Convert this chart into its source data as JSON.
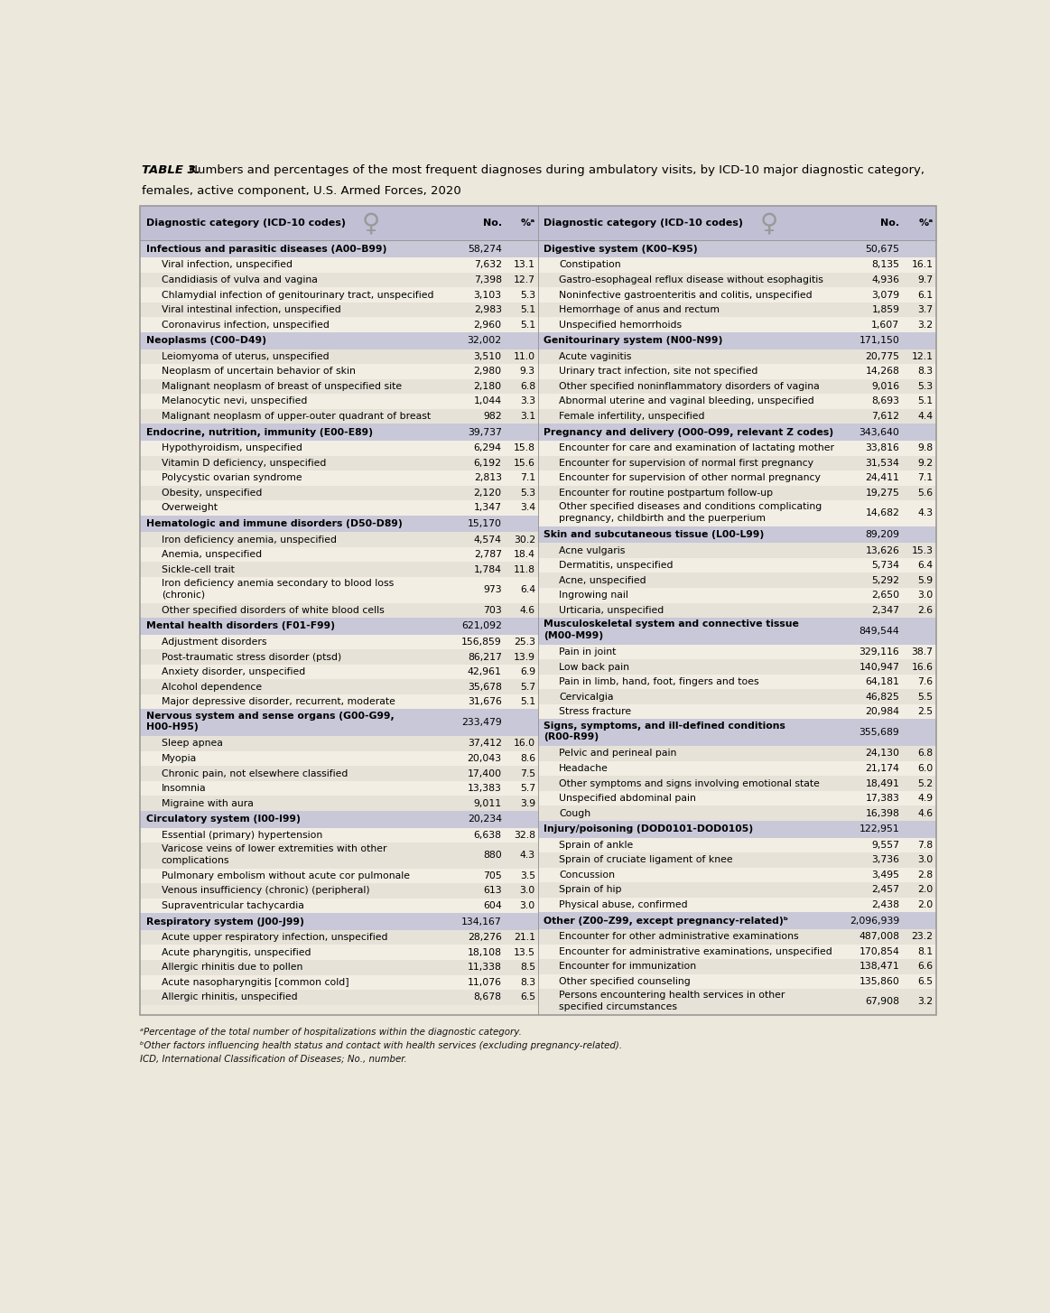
{
  "title_bold": "TABLE 3.",
  "title_normal": " Numbers and percentages of the most frequent diagnoses during ambulatory visits, by ICD-10 major diagnostic category,",
  "title_line2": "females, active component, U.S. Armed Forces, 2020",
  "bg_color": "#ede8dc",
  "header_bg": "#c0bfd4",
  "cat_bg": "#c8c8d8",
  "item_bg1": "#f2eee4",
  "item_bg2": "#e6e2d8",
  "border_color": "#999999",
  "text_color": "#000000",
  "symbol_color": "#999999",
  "footnotes": [
    "ᵃPercentage of the total number of hospitalizations within the diagnostic category.",
    "ᵇOther factors influencing health status and contact with health services (excluding pregnancy-related).",
    "ICD, International Classification of Diseases; No., number."
  ],
  "left_col": [
    {
      "type": "header",
      "text": "Diagnostic category (ICD-10 codes)",
      "no": "No.",
      "pct": "%ᵃ"
    },
    {
      "type": "cat",
      "text": "Infectious and parasitic diseases (A00–B99)",
      "no": "58,274",
      "pct": ""
    },
    {
      "type": "item",
      "text": "Viral infection, unspecified",
      "no": "7,632",
      "pct": "13.1"
    },
    {
      "type": "item",
      "text": "Candidiasis of vulva and vagina",
      "no": "7,398",
      "pct": "12.7"
    },
    {
      "type": "item",
      "text": "Chlamydial infection of genitourinary tract, unspecified",
      "no": "3,103",
      "pct": "5.3"
    },
    {
      "type": "item",
      "text": "Viral intestinal infection, unspecified",
      "no": "2,983",
      "pct": "5.1"
    },
    {
      "type": "item",
      "text": "Coronavirus infection, unspecified",
      "no": "2,960",
      "pct": "5.1"
    },
    {
      "type": "cat",
      "text": "Neoplasms (C00–D49)",
      "no": "32,002",
      "pct": ""
    },
    {
      "type": "item",
      "text": "Leiomyoma of uterus, unspecified",
      "no": "3,510",
      "pct": "11.0"
    },
    {
      "type": "item",
      "text": "Neoplasm of uncertain behavior of skin",
      "no": "2,980",
      "pct": "9.3"
    },
    {
      "type": "item",
      "text": "Malignant neoplasm of breast of unspecified site",
      "no": "2,180",
      "pct": "6.8"
    },
    {
      "type": "item",
      "text": "Melanocytic nevi, unspecified",
      "no": "1,044",
      "pct": "3.3"
    },
    {
      "type": "item",
      "text": "Malignant neoplasm of upper-outer quadrant of breast",
      "no": "982",
      "pct": "3.1"
    },
    {
      "type": "cat",
      "text": "Endocrine, nutrition, immunity (E00-E89)",
      "no": "39,737",
      "pct": ""
    },
    {
      "type": "item",
      "text": "Hypothyroidism, unspecified",
      "no": "6,294",
      "pct": "15.8"
    },
    {
      "type": "item",
      "text": "Vitamin D deficiency, unspecified",
      "no": "6,192",
      "pct": "15.6"
    },
    {
      "type": "item",
      "text": "Polycystic ovarian syndrome",
      "no": "2,813",
      "pct": "7.1"
    },
    {
      "type": "item",
      "text": "Obesity, unspecified",
      "no": "2,120",
      "pct": "5.3"
    },
    {
      "type": "item",
      "text": "Overweight",
      "no": "1,347",
      "pct": "3.4"
    },
    {
      "type": "cat",
      "text": "Hematologic and immune disorders (D50-D89)",
      "no": "15,170",
      "pct": ""
    },
    {
      "type": "item",
      "text": "Iron deficiency anemia, unspecified",
      "no": "4,574",
      "pct": "30.2"
    },
    {
      "type": "item",
      "text": "Anemia, unspecified",
      "no": "2,787",
      "pct": "18.4"
    },
    {
      "type": "item",
      "text": "Sickle-cell trait",
      "no": "1,784",
      "pct": "11.8"
    },
    {
      "type": "item2",
      "text": "Iron deficiency anemia secondary to blood loss\n(chronic)",
      "no": "973",
      "pct": "6.4"
    },
    {
      "type": "item",
      "text": "Other specified disorders of white blood cells",
      "no": "703",
      "pct": "4.6"
    },
    {
      "type": "cat",
      "text": "Mental health disorders (F01-F99)",
      "no": "621,092",
      "pct": ""
    },
    {
      "type": "item",
      "text": "Adjustment disorders",
      "no": "156,859",
      "pct": "25.3"
    },
    {
      "type": "item",
      "text": "Post-traumatic stress disorder (ptsd)",
      "no": "86,217",
      "pct": "13.9"
    },
    {
      "type": "item",
      "text": "Anxiety disorder, unspecified",
      "no": "42,961",
      "pct": "6.9"
    },
    {
      "type": "item",
      "text": "Alcohol dependence",
      "no": "35,678",
      "pct": "5.7"
    },
    {
      "type": "item",
      "text": "Major depressive disorder, recurrent, moderate",
      "no": "31,676",
      "pct": "5.1"
    },
    {
      "type": "cat2",
      "text": "Nervous system and sense organs (G00-G99,\nH00-H95)",
      "no": "233,479",
      "pct": ""
    },
    {
      "type": "item",
      "text": "Sleep apnea",
      "no": "37,412",
      "pct": "16.0"
    },
    {
      "type": "item",
      "text": "Myopia",
      "no": "20,043",
      "pct": "8.6"
    },
    {
      "type": "item",
      "text": "Chronic pain, not elsewhere classified",
      "no": "17,400",
      "pct": "7.5"
    },
    {
      "type": "item",
      "text": "Insomnia",
      "no": "13,383",
      "pct": "5.7"
    },
    {
      "type": "item",
      "text": "Migraine with aura",
      "no": "9,011",
      "pct": "3.9"
    },
    {
      "type": "cat",
      "text": "Circulatory system (I00-I99)",
      "no": "20,234",
      "pct": ""
    },
    {
      "type": "item",
      "text": "Essential (primary) hypertension",
      "no": "6,638",
      "pct": "32.8"
    },
    {
      "type": "item2",
      "text": "Varicose veins of lower extremities with other\ncomplications",
      "no": "880",
      "pct": "4.3"
    },
    {
      "type": "item",
      "text": "Pulmonary embolism without acute cor pulmonale",
      "no": "705",
      "pct": "3.5"
    },
    {
      "type": "item",
      "text": "Venous insufficiency (chronic) (peripheral)",
      "no": "613",
      "pct": "3.0"
    },
    {
      "type": "item",
      "text": "Supraventricular tachycardia",
      "no": "604",
      "pct": "3.0"
    },
    {
      "type": "cat",
      "text": "Respiratory system (J00-J99)",
      "no": "134,167",
      "pct": ""
    },
    {
      "type": "item",
      "text": "Acute upper respiratory infection, unspecified",
      "no": "28,276",
      "pct": "21.1"
    },
    {
      "type": "item",
      "text": "Acute pharyngitis, unspecified",
      "no": "18,108",
      "pct": "13.5"
    },
    {
      "type": "item",
      "text": "Allergic rhinitis due to pollen",
      "no": "11,338",
      "pct": "8.5"
    },
    {
      "type": "item",
      "text": "Acute nasopharyngitis [common cold]",
      "no": "11,076",
      "pct": "8.3"
    },
    {
      "type": "item",
      "text": "Allergic rhinitis, unspecified",
      "no": "8,678",
      "pct": "6.5"
    }
  ],
  "right_col": [
    {
      "type": "header",
      "text": "Diagnostic category (ICD-10 codes)",
      "no": "No.",
      "pct": "%ᵃ"
    },
    {
      "type": "cat",
      "text": "Digestive system (K00–K95)",
      "no": "50,675",
      "pct": ""
    },
    {
      "type": "item",
      "text": "Constipation",
      "no": "8,135",
      "pct": "16.1"
    },
    {
      "type": "item",
      "text": "Gastro-esophageal reflux disease without esophagitis",
      "no": "4,936",
      "pct": "9.7"
    },
    {
      "type": "item",
      "text": "Noninfective gastroenteritis and colitis, unspecified",
      "no": "3,079",
      "pct": "6.1"
    },
    {
      "type": "item",
      "text": "Hemorrhage of anus and rectum",
      "no": "1,859",
      "pct": "3.7"
    },
    {
      "type": "item",
      "text": "Unspecified hemorrhoids",
      "no": "1,607",
      "pct": "3.2"
    },
    {
      "type": "cat",
      "text": "Genitourinary system (N00-N99)",
      "no": "171,150",
      "pct": ""
    },
    {
      "type": "item",
      "text": "Acute vaginitis",
      "no": "20,775",
      "pct": "12.1"
    },
    {
      "type": "item",
      "text": "Urinary tract infection, site not specified",
      "no": "14,268",
      "pct": "8.3"
    },
    {
      "type": "item",
      "text": "Other specified noninflammatory disorders of vagina",
      "no": "9,016",
      "pct": "5.3"
    },
    {
      "type": "item",
      "text": "Abnormal uterine and vaginal bleeding, unspecified",
      "no": "8,693",
      "pct": "5.1"
    },
    {
      "type": "item",
      "text": "Female infertility, unspecified",
      "no": "7,612",
      "pct": "4.4"
    },
    {
      "type": "cat",
      "text": "Pregnancy and delivery (O00-O99, relevant Z codes)",
      "no": "343,640",
      "pct": ""
    },
    {
      "type": "item",
      "text": "Encounter for care and examination of lactating mother",
      "no": "33,816",
      "pct": "9.8"
    },
    {
      "type": "item",
      "text": "Encounter for supervision of normal first pregnancy",
      "no": "31,534",
      "pct": "9.2"
    },
    {
      "type": "item",
      "text": "Encounter for supervision of other normal pregnancy",
      "no": "24,411",
      "pct": "7.1"
    },
    {
      "type": "item",
      "text": "Encounter for routine postpartum follow-up",
      "no": "19,275",
      "pct": "5.6"
    },
    {
      "type": "item2",
      "text": "Other specified diseases and conditions complicating\npregnancy, childbirth and the puerperium",
      "no": "14,682",
      "pct": "4.3"
    },
    {
      "type": "cat",
      "text": "Skin and subcutaneous tissue (L00-L99)",
      "no": "89,209",
      "pct": ""
    },
    {
      "type": "item",
      "text": "Acne vulgaris",
      "no": "13,626",
      "pct": "15.3"
    },
    {
      "type": "item",
      "text": "Dermatitis, unspecified",
      "no": "5,734",
      "pct": "6.4"
    },
    {
      "type": "item",
      "text": "Acne, unspecified",
      "no": "5,292",
      "pct": "5.9"
    },
    {
      "type": "item",
      "text": "Ingrowing nail",
      "no": "2,650",
      "pct": "3.0"
    },
    {
      "type": "item",
      "text": "Urticaria, unspecified",
      "no": "2,347",
      "pct": "2.6"
    },
    {
      "type": "cat2",
      "text": "Musculoskeletal system and connective tissue\n(M00-M99)",
      "no": "849,544",
      "pct": ""
    },
    {
      "type": "item",
      "text": "Pain in joint",
      "no": "329,116",
      "pct": "38.7"
    },
    {
      "type": "item",
      "text": "Low back pain",
      "no": "140,947",
      "pct": "16.6"
    },
    {
      "type": "item",
      "text": "Pain in limb, hand, foot, fingers and toes",
      "no": "64,181",
      "pct": "7.6"
    },
    {
      "type": "item",
      "text": "Cervicalgia",
      "no": "46,825",
      "pct": "5.5"
    },
    {
      "type": "item",
      "text": "Stress fracture",
      "no": "20,984",
      "pct": "2.5"
    },
    {
      "type": "cat2",
      "text": "Signs, symptoms, and ill-defined conditions\n(R00-R99)",
      "no": "355,689",
      "pct": ""
    },
    {
      "type": "item",
      "text": "Pelvic and perineal pain",
      "no": "24,130",
      "pct": "6.8"
    },
    {
      "type": "item",
      "text": "Headache",
      "no": "21,174",
      "pct": "6.0"
    },
    {
      "type": "item",
      "text": "Other symptoms and signs involving emotional state",
      "no": "18,491",
      "pct": "5.2"
    },
    {
      "type": "item",
      "text": "Unspecified abdominal pain",
      "no": "17,383",
      "pct": "4.9"
    },
    {
      "type": "item",
      "text": "Cough",
      "no": "16,398",
      "pct": "4.6"
    },
    {
      "type": "cat",
      "text": "Injury/poisoning (DOD0101-DOD0105)",
      "no": "122,951",
      "pct": ""
    },
    {
      "type": "item",
      "text": "Sprain of ankle",
      "no": "9,557",
      "pct": "7.8"
    },
    {
      "type": "item",
      "text": "Sprain of cruciate ligament of knee",
      "no": "3,736",
      "pct": "3.0"
    },
    {
      "type": "item",
      "text": "Concussion",
      "no": "3,495",
      "pct": "2.8"
    },
    {
      "type": "item",
      "text": "Sprain of hip",
      "no": "2,457",
      "pct": "2.0"
    },
    {
      "type": "item",
      "text": "Physical abuse, confirmed",
      "no": "2,438",
      "pct": "2.0"
    },
    {
      "type": "cat",
      "text": "Other (Z00–Z99, except pregnancy-related)ᵇ",
      "no": "2,096,939",
      "pct": ""
    },
    {
      "type": "item",
      "text": "Encounter for other administrative examinations",
      "no": "487,008",
      "pct": "23.2"
    },
    {
      "type": "item",
      "text": "Encounter for administrative examinations, unspecified",
      "no": "170,854",
      "pct": "8.1"
    },
    {
      "type": "item",
      "text": "Encounter for immunization",
      "no": "138,471",
      "pct": "6.6"
    },
    {
      "type": "item",
      "text": "Other specified counseling",
      "no": "135,860",
      "pct": "6.5"
    },
    {
      "type": "item2",
      "text": "Persons encountering health services in other\nspecified circumstances",
      "no": "67,908",
      "pct": "3.2"
    }
  ]
}
